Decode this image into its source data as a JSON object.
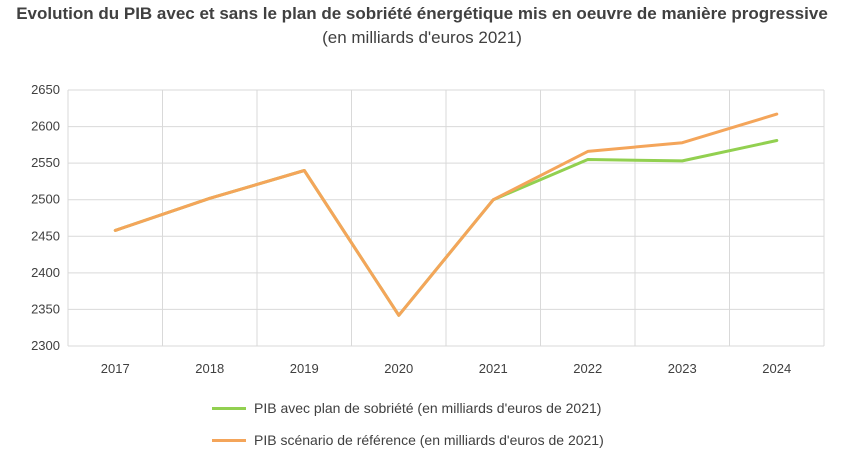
{
  "chart_data": {
    "type": "line",
    "title": "Evolution du PIB avec et sans le plan de sobriété énergétique mis en oeuvre de manière progressive",
    "subtitle": "(en milliards d'euros 2021)",
    "categories": [
      "2017",
      "2018",
      "2019",
      "2020",
      "2021",
      "2022",
      "2023",
      "2024"
    ],
    "yticks": [
      "2300",
      "2350",
      "2400",
      "2450",
      "2500",
      "2550",
      "2600",
      "2650"
    ],
    "ylim": [
      2300,
      2650
    ],
    "grid": true,
    "legend_position": "bottom",
    "series": [
      {
        "name": "PIB avec plan de sobriété (en milliards d'euros de 2021)",
        "color": "#92d050",
        "values": [
          2458,
          2502,
          2540,
          2342,
          2500,
          2555,
          2553,
          2581
        ]
      },
      {
        "name": "PIB scénario de référence (en milliards d'euros de 2021)",
        "color": "#f4a55a",
        "values": [
          2458,
          2502,
          2540,
          2342,
          2500,
          2566,
          2578,
          2617
        ]
      }
    ]
  }
}
